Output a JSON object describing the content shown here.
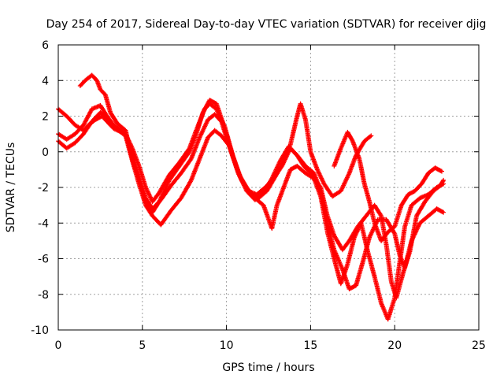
{
  "chart_data": {
    "type": "scatter",
    "title": "Day 254 of 2017, Sidereal Day-to-day VTEC variation (SDTVAR) for receiver djig",
    "xlabel": "GPS time / hours",
    "ylabel": "SDTVAR / TECUs",
    "xlim": [
      0,
      25
    ],
    "ylim": [
      -10,
      6
    ],
    "xticks": [
      0,
      5,
      10,
      15,
      20,
      25
    ],
    "yticks": [
      -10,
      -8,
      -6,
      -4,
      -2,
      0,
      2,
      4,
      6
    ],
    "grid": true,
    "marker": "plus",
    "color": "#ff0000",
    "series": [
      {
        "points": [
          [
            0.0,
            2.4
          ],
          [
            0.5,
            2.0
          ],
          [
            1.0,
            1.5
          ],
          [
            1.5,
            1.2
          ],
          [
            1.8,
            1.5
          ],
          [
            2.2,
            1.8
          ],
          [
            2.6,
            2.0
          ],
          [
            2.9,
            1.7
          ],
          [
            3.3,
            1.3
          ],
          [
            4.0,
            1.0
          ],
          [
            4.4,
            0.2
          ],
          [
            4.8,
            -0.8
          ],
          [
            5.2,
            -2.0
          ],
          [
            5.6,
            -2.8
          ],
          [
            6.0,
            -2.3
          ],
          [
            6.6,
            -1.3
          ],
          [
            7.2,
            -0.6
          ],
          [
            7.8,
            0.2
          ],
          [
            8.2,
            1.2
          ],
          [
            8.7,
            2.4
          ],
          [
            9.0,
            2.7
          ],
          [
            9.4,
            2.4
          ],
          [
            9.9,
            1.4
          ],
          [
            10.4,
            -0.3
          ],
          [
            10.9,
            -1.6
          ],
          [
            11.4,
            -2.3
          ],
          [
            11.9,
            -2.6
          ],
          [
            12.4,
            -2.2
          ],
          [
            12.9,
            -1.4
          ],
          [
            13.4,
            -0.5
          ],
          [
            13.8,
            0.4
          ],
          [
            14.0,
            1.2
          ],
          [
            14.2,
            2.0
          ],
          [
            14.4,
            2.7
          ],
          [
            14.7,
            1.8
          ],
          [
            15.0,
            0.0
          ],
          [
            15.4,
            -1.0
          ],
          [
            15.8,
            -1.8
          ],
          [
            16.3,
            -2.5
          ],
          [
            16.8,
            -2.2
          ],
          [
            17.3,
            -1.2
          ],
          [
            17.7,
            -0.2
          ],
          [
            18.2,
            0.6
          ],
          [
            18.6,
            0.9
          ]
        ]
      },
      {
        "points": [
          [
            0.0,
            1.0
          ],
          [
            0.5,
            0.7
          ],
          [
            1.0,
            1.0
          ],
          [
            1.5,
            1.5
          ],
          [
            2.0,
            2.4
          ],
          [
            2.5,
            2.6
          ],
          [
            2.9,
            2.0
          ],
          [
            3.3,
            1.5
          ],
          [
            4.0,
            1.0
          ],
          [
            4.4,
            -0.2
          ],
          [
            4.8,
            -1.4
          ],
          [
            5.2,
            -2.6
          ],
          [
            5.6,
            -3.2
          ],
          [
            6.1,
            -2.7
          ],
          [
            6.7,
            -1.9
          ],
          [
            7.3,
            -1.2
          ],
          [
            7.9,
            -0.4
          ],
          [
            8.4,
            0.8
          ],
          [
            8.9,
            1.8
          ],
          [
            9.3,
            2.1
          ],
          [
            9.7,
            1.7
          ],
          [
            10.2,
            0.2
          ],
          [
            10.7,
            -1.2
          ],
          [
            11.2,
            -2.2
          ],
          [
            11.7,
            -2.7
          ],
          [
            12.2,
            -2.3
          ],
          [
            12.7,
            -1.5
          ],
          [
            13.2,
            -0.5
          ],
          [
            13.7,
            0.3
          ],
          [
            14.2,
            -0.2
          ],
          [
            14.7,
            -0.8
          ],
          [
            15.2,
            -1.2
          ],
          [
            15.6,
            -2.2
          ],
          [
            16.0,
            -4.0
          ],
          [
            16.4,
            -5.5
          ],
          [
            16.9,
            -6.6
          ],
          [
            17.3,
            -7.7
          ],
          [
            17.7,
            -7.5
          ],
          [
            18.1,
            -6.2
          ],
          [
            18.5,
            -4.8
          ],
          [
            19.0,
            -3.8
          ],
          [
            19.5,
            -3.8
          ],
          [
            20.0,
            -4.6
          ],
          [
            20.3,
            -5.8
          ],
          [
            20.6,
            -6.5
          ],
          [
            21.0,
            -5.0
          ],
          [
            21.5,
            -4.0
          ],
          [
            22.0,
            -3.6
          ],
          [
            22.5,
            -3.2
          ],
          [
            22.9,
            -3.4
          ]
        ]
      },
      {
        "points": [
          [
            0.0,
            0.6
          ],
          [
            0.5,
            0.2
          ],
          [
            1.0,
            0.5
          ],
          [
            1.5,
            1.0
          ],
          [
            2.0,
            1.7
          ],
          [
            2.5,
            2.2
          ],
          [
            2.9,
            1.9
          ],
          [
            3.3,
            1.4
          ],
          [
            4.0,
            0.9
          ],
          [
            4.4,
            -0.5
          ],
          [
            4.8,
            -1.8
          ],
          [
            5.2,
            -3.0
          ],
          [
            5.6,
            -3.6
          ],
          [
            6.1,
            -4.1
          ],
          [
            6.7,
            -3.3
          ],
          [
            7.3,
            -2.6
          ],
          [
            7.9,
            -1.6
          ],
          [
            8.4,
            -0.4
          ],
          [
            8.9,
            0.8
          ],
          [
            9.3,
            1.2
          ],
          [
            9.7,
            0.9
          ],
          [
            10.2,
            0.3
          ],
          [
            10.7,
            -1.2
          ],
          [
            11.2,
            -2.0
          ],
          [
            11.7,
            -2.6
          ],
          [
            12.2,
            -3.0
          ],
          [
            12.7,
            -4.3
          ],
          [
            13.0,
            -3.0
          ],
          [
            13.4,
            -2.0
          ],
          [
            13.8,
            -1.0
          ],
          [
            14.2,
            -0.8
          ],
          [
            14.7,
            -1.2
          ],
          [
            15.2,
            -1.5
          ],
          [
            15.6,
            -2.5
          ],
          [
            16.0,
            -4.5
          ],
          [
            16.4,
            -6.0
          ],
          [
            16.8,
            -7.4
          ],
          [
            17.2,
            -6.3
          ],
          [
            17.6,
            -4.8
          ],
          [
            18.0,
            -4.0
          ],
          [
            18.4,
            -5.6
          ],
          [
            18.8,
            -7.0
          ],
          [
            19.2,
            -8.5
          ],
          [
            19.6,
            -9.4
          ],
          [
            20.0,
            -8.2
          ],
          [
            20.3,
            -6.2
          ],
          [
            20.6,
            -4.2
          ],
          [
            21.0,
            -3.0
          ],
          [
            21.5,
            -2.6
          ],
          [
            22.0,
            -2.4
          ],
          [
            22.5,
            -2.0
          ],
          [
            22.9,
            -1.8
          ]
        ]
      },
      {
        "points": [
          [
            1.3,
            3.7
          ],
          [
            1.6,
            4.0
          ],
          [
            2.0,
            4.3
          ],
          [
            2.3,
            4.0
          ],
          [
            2.5,
            3.5
          ],
          [
            2.8,
            3.2
          ],
          [
            3.1,
            2.2
          ],
          [
            3.5,
            1.6
          ],
          [
            4.0,
            1.2
          ],
          [
            4.4,
            -0.4
          ],
          [
            4.8,
            -1.6
          ],
          [
            5.2,
            -2.8
          ],
          [
            5.6,
            -3.4
          ],
          [
            6.0,
            -2.8
          ],
          [
            6.6,
            -1.6
          ],
          [
            7.2,
            -0.8
          ],
          [
            7.8,
            0.0
          ],
          [
            8.2,
            1.0
          ],
          [
            8.6,
            2.2
          ],
          [
            9.0,
            2.9
          ],
          [
            9.4,
            2.7
          ],
          [
            9.8,
            1.6
          ],
          [
            10.3,
            0.0
          ],
          [
            10.8,
            -1.4
          ],
          [
            11.3,
            -2.2
          ],
          [
            11.8,
            -2.4
          ],
          [
            12.3,
            -2.0
          ],
          [
            12.8,
            -1.5
          ],
          [
            13.3,
            -0.8
          ],
          [
            13.8,
            0.2
          ],
          [
            14.2,
            -0.2
          ],
          [
            14.6,
            -0.8
          ],
          [
            15.1,
            -1.3
          ],
          [
            15.6,
            -2.0
          ],
          [
            16.0,
            -3.6
          ],
          [
            16.4,
            -4.7
          ],
          [
            16.9,
            -5.5
          ],
          [
            17.3,
            -5.0
          ],
          [
            17.8,
            -4.2
          ],
          [
            18.3,
            -3.6
          ],
          [
            18.8,
            -3.0
          ],
          [
            19.2,
            -3.6
          ],
          [
            19.5,
            -5.2
          ],
          [
            19.8,
            -7.3
          ],
          [
            20.1,
            -8.2
          ],
          [
            20.5,
            -6.8
          ],
          [
            20.9,
            -5.6
          ],
          [
            21.3,
            -3.6
          ],
          [
            21.8,
            -2.8
          ],
          [
            22.3,
            -2.2
          ],
          [
            22.7,
            -1.9
          ],
          [
            22.9,
            -1.6
          ]
        ]
      },
      {
        "points": [
          [
            16.4,
            -0.8
          ],
          [
            16.8,
            0.2
          ],
          [
            17.2,
            1.1
          ],
          [
            17.5,
            0.6
          ],
          [
            17.9,
            -0.4
          ],
          [
            18.2,
            -1.8
          ],
          [
            18.5,
            -2.8
          ],
          [
            18.8,
            -4.0
          ],
          [
            19.2,
            -5.0
          ],
          [
            19.6,
            -4.5
          ],
          [
            20.0,
            -4.2
          ],
          [
            20.4,
            -3.0
          ],
          [
            20.8,
            -2.4
          ],
          [
            21.2,
            -2.2
          ],
          [
            21.6,
            -1.8
          ],
          [
            22.0,
            -1.2
          ],
          [
            22.4,
            -0.9
          ],
          [
            22.8,
            -1.1
          ]
        ]
      }
    ]
  }
}
